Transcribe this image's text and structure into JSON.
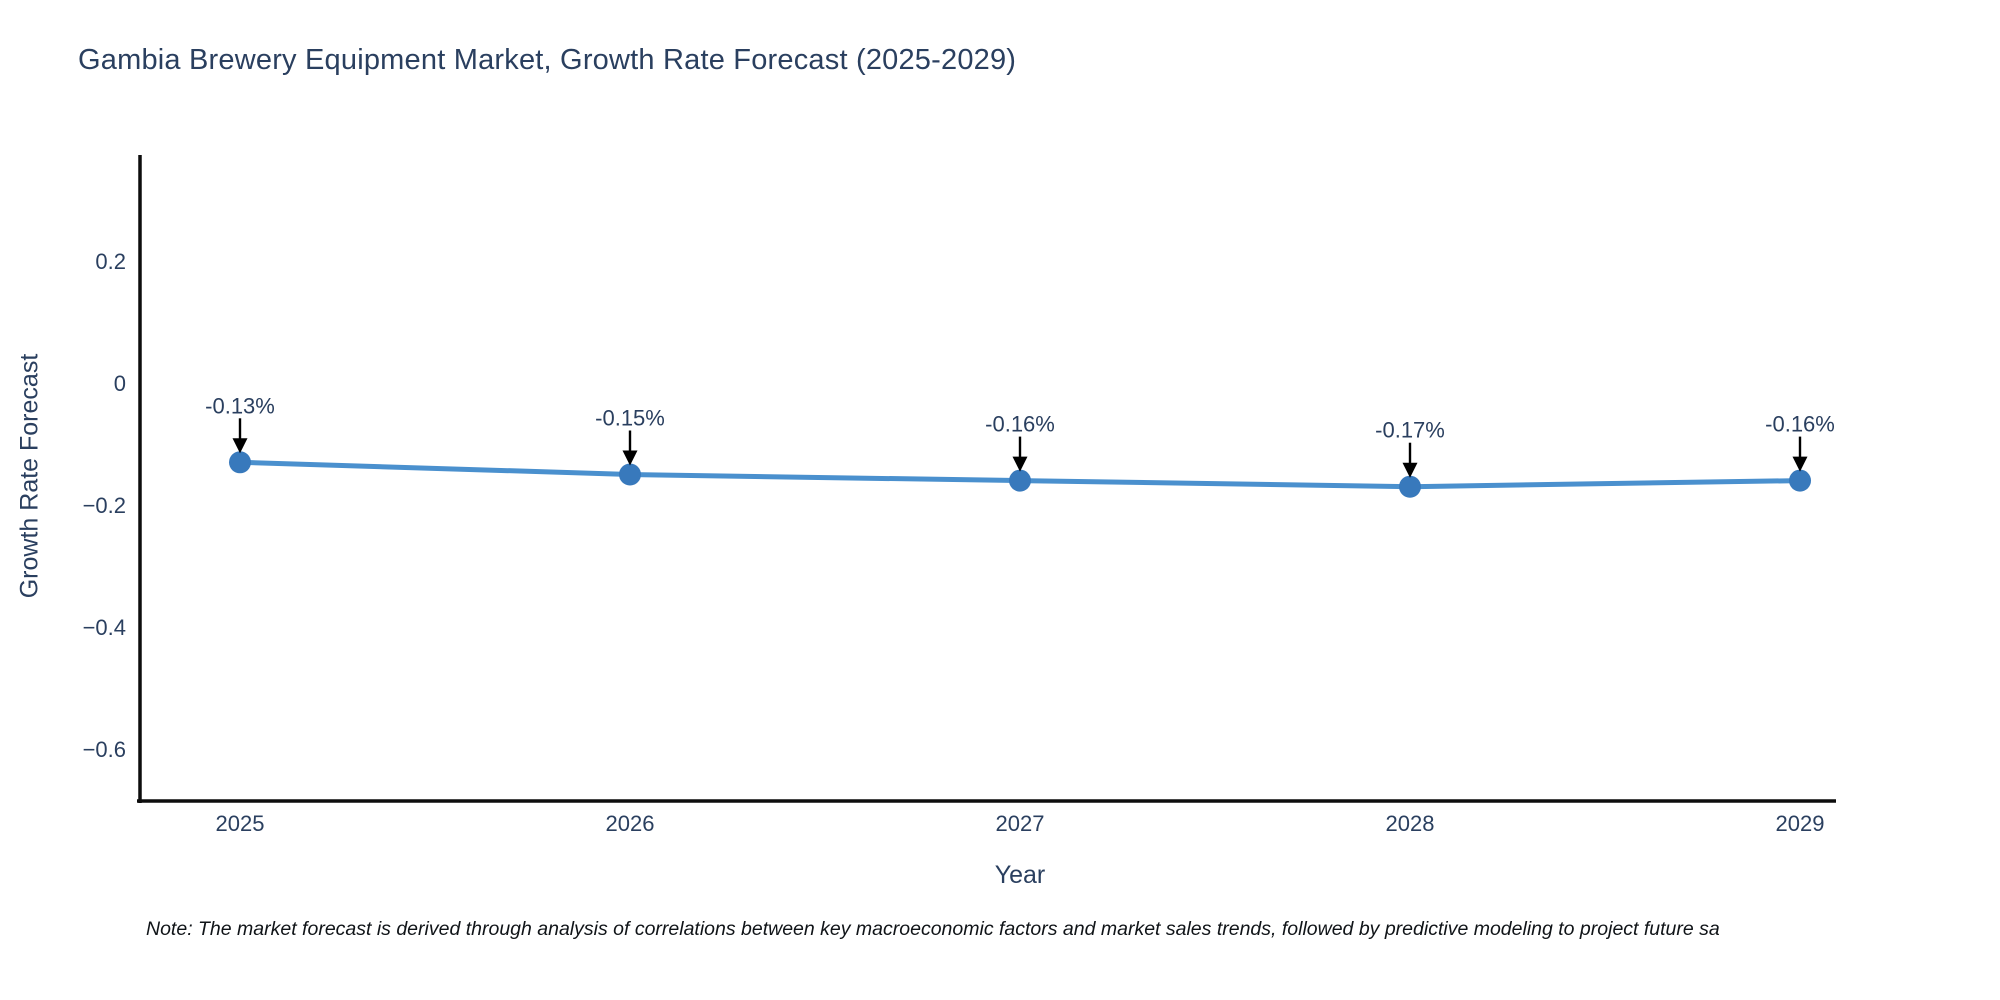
{
  "chart": {
    "title": "Gambia Brewery Equipment Market, Growth Rate Forecast (2025-2029)",
    "xlabel": "Year",
    "ylabel": "Growth Rate Forecast"
  },
  "note": {
    "text": "Note: The market forecast is derived through analysis of correlations between key macroeconomic factors and market sales trends, followed by predictive modeling to project future sa"
  },
  "chart_data": {
    "type": "line",
    "title": "Gambia Brewery Equipment Market, Growth Rate Forecast (2025-2029)",
    "xlabel": "Year",
    "ylabel": "Growth Rate Forecast",
    "x": [
      2025,
      2026,
      2027,
      2028,
      2029
    ],
    "y": [
      -0.13,
      -0.15,
      -0.16,
      -0.17,
      -0.16
    ],
    "point_labels": [
      "-0.13%",
      "-0.15%",
      "-0.16%",
      "-0.17%",
      "-0.16%"
    ],
    "x_tick_labels": [
      "2025",
      "2026",
      "2027",
      "2028",
      "2029"
    ],
    "y_tick_values": [
      0.2,
      0,
      -0.2,
      -0.4,
      -0.6
    ],
    "y_tick_labels": [
      "0.2",
      "0",
      "−0.2",
      "−0.4",
      "−0.6"
    ],
    "ylim": [
      -0.69,
      0.37
    ],
    "grid": false,
    "legend": "none",
    "colors": {
      "line": "#4a90ce",
      "marker": "#3879bc",
      "axis": "#0d0d0d",
      "tick_text": "#2a3f5f",
      "annotation_text": "#2a3f5f",
      "arrow": "#000000"
    }
  }
}
